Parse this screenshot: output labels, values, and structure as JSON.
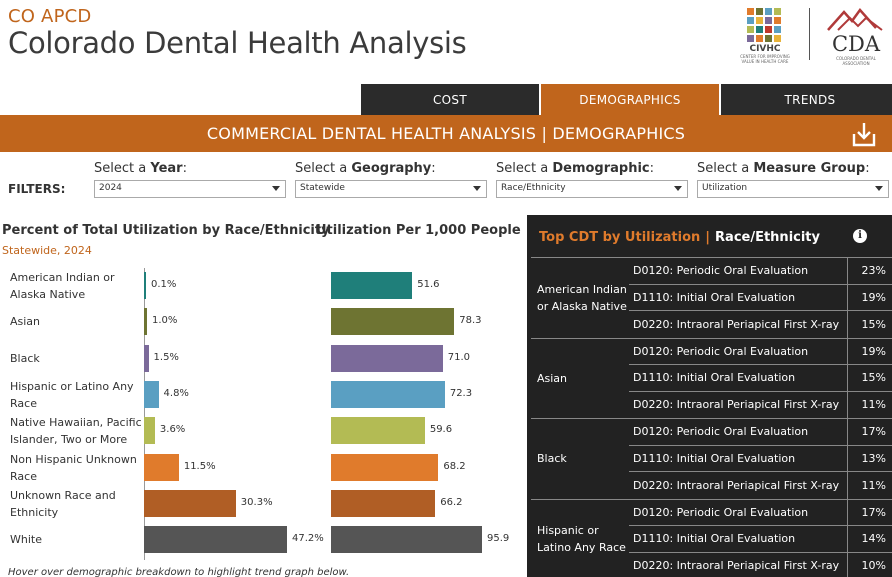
{
  "header": {
    "kicker": "CO APCD",
    "title": "Colorado Dental Health Analysis"
  },
  "logos": {
    "civhc": {
      "name": "CIVHC",
      "tagline": "CENTER FOR IMPROVING VALUE IN HEALTH CARE"
    },
    "cda": {
      "name": "CDA",
      "tagline": "COLORADO DENTAL ASSOCIATION"
    }
  },
  "tabs": [
    {
      "label": "COST",
      "active": false
    },
    {
      "label": "DEMOGRAPHICS",
      "active": true
    },
    {
      "label": "TRENDS",
      "active": false
    }
  ],
  "banner": {
    "title": "COMMERCIAL DENTAL HEALTH ANALYSIS | DEMOGRAPHICS",
    "download_icon": "download-icon"
  },
  "filters": {
    "label": "FILTERS:",
    "year": {
      "prefix": "Select a ",
      "bold": "Year",
      "suffix": ":",
      "value": "2024"
    },
    "geography": {
      "prefix": "Select a ",
      "bold": "Geography",
      "suffix": ":",
      "value": "Statewide"
    },
    "demographic": {
      "prefix": "Select a ",
      "bold": "Demographic",
      "suffix": ":",
      "value": "Race/Ethnicity"
    },
    "measure": {
      "prefix": "Select a ",
      "bold": "Measure Group",
      "suffix": ":",
      "value": "Utilization"
    }
  },
  "pct_chart": {
    "title": "Percent of Total Utilization by Race/Ethnicity",
    "subtitle": "Statewide, 2024"
  },
  "rate_chart": {
    "title": "Utilization Per 1,000 People"
  },
  "chart_data": {
    "type": "bar",
    "categories": [
      "American Indian or Alaska Native",
      "Asian",
      "Black",
      "Hispanic or Latino Any Race",
      "Native Hawaiian, Pacific Islander, Two or More",
      "Non Hispanic Unknown Race",
      "Unknown Race and Ethnicity",
      "White"
    ],
    "colors": [
      "#1f7f7a",
      "#6e7432",
      "#7b6a9a",
      "#5a9fc2",
      "#b3bb54",
      "#e07b2c",
      "#b05e25",
      "#555555"
    ],
    "series": [
      {
        "name": "Percent of Total Utilization",
        "values": [
          0.1,
          1.0,
          1.5,
          4.8,
          3.6,
          11.5,
          30.3,
          47.2
        ],
        "labels": [
          "0.1%",
          "1.0%",
          "1.5%",
          "4.8%",
          "3.6%",
          "11.5%",
          "30.3%",
          "47.2%"
        ],
        "max": 47.2
      },
      {
        "name": "Utilization Per 1,000 People",
        "values": [
          51.6,
          78.3,
          71.0,
          72.3,
          59.6,
          68.2,
          66.2,
          95.9
        ],
        "labels": [
          "51.6",
          "78.3",
          "71.0",
          "72.3",
          "59.6",
          "68.2",
          "66.2",
          "95.9"
        ],
        "max": 95.9
      }
    ],
    "row_labels": [
      [
        "American Indian or",
        "Alaska Native"
      ],
      [
        "Asian"
      ],
      [
        "Black"
      ],
      [
        "Hispanic or Latino Any",
        "Race"
      ],
      [
        "Native Hawaiian, Pacific",
        "Islander, Two or More"
      ],
      [
        "Non Hispanic Unknown",
        "Race"
      ],
      [
        "Unknown Race and",
        "Ethnicity"
      ],
      [
        "White"
      ]
    ],
    "title": "Percent of Total Utilization by Race/Ethnicity",
    "xlabel": "",
    "ylabel": ""
  },
  "footnote": "Hover over demographic breakdown to highlight trend graph below.",
  "cdt_panel": {
    "title_highlight": "Top CDT by Utilization",
    "separator": "|",
    "title_demographic": "Race/Ethnicity",
    "info_icon": "i",
    "groups": [
      {
        "label": "American Indian or Alaska Native",
        "rows": [
          {
            "code": "D0120: Periodic Oral Evaluation",
            "pct": "23%"
          },
          {
            "code": "D1110: Initial Oral Evaluation",
            "pct": "19%"
          },
          {
            "code": "D0220: Intraoral Periapical First X-ray",
            "pct": "15%"
          }
        ]
      },
      {
        "label": "Asian",
        "rows": [
          {
            "code": "D0120: Periodic Oral Evaluation",
            "pct": "19%"
          },
          {
            "code": "D1110: Initial Oral Evaluation",
            "pct": "15%"
          },
          {
            "code": "D0220: Intraoral Periapical First X-ray",
            "pct": "11%"
          }
        ]
      },
      {
        "label": "Black",
        "rows": [
          {
            "code": "D0120: Periodic Oral Evaluation",
            "pct": "17%"
          },
          {
            "code": "D1110: Initial Oral Evaluation",
            "pct": "13%"
          },
          {
            "code": "D0220: Intraoral Periapical First X-ray",
            "pct": "11%"
          }
        ]
      },
      {
        "label": "Hispanic or Latino Any Race",
        "rows": [
          {
            "code": "D0120: Periodic Oral Evaluation",
            "pct": "17%"
          },
          {
            "code": "D1110: Initial Oral Evaluation",
            "pct": "14%"
          },
          {
            "code": "D0220: Intraoral Periapical First X-ray",
            "pct": "10%"
          }
        ]
      }
    ]
  }
}
